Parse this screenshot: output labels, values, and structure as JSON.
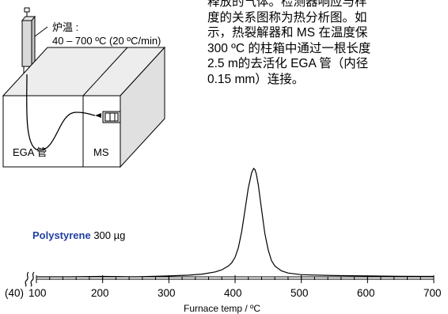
{
  "description_lines": [
    "释放的气体。检测器响应与样",
    "度的关系图称为热分析图。如",
    "示，热裂解器和 MS 在温度保",
    "300 ºC 的柱箱中通过一根长度",
    "2.5 m的去活化 EGA 管（内径",
    "0.15 mm）连接。"
  ],
  "diagram": {
    "furnace_label": "炉温 :",
    "furnace_range": "40 – 700 ºC (20 ºC/min)",
    "ega_label": "EGA 管",
    "ms_label": "MS"
  },
  "chart_data": {
    "type": "line",
    "xlabel": "Furnace temp / ºC",
    "ylabel": "",
    "xlim": [
      100,
      700
    ],
    "ylim": [
      0,
      1
    ],
    "axis_break": true,
    "break_label": "(40)",
    "tick_labels": [
      "100",
      "200",
      "300",
      "400",
      "500",
      "600",
      "700"
    ],
    "ticks": [
      100,
      200,
      300,
      400,
      500,
      600,
      700
    ],
    "annotation": {
      "name": "Polystyrene",
      "amount": "300 µg"
    },
    "series": [
      {
        "color": "#000000",
        "x": [
          100,
          150,
          200,
          250,
          300,
          330,
          350,
          370,
          380,
          390,
          395,
          400,
          405,
          410,
          415,
          420,
          425,
          428,
          430,
          432,
          435,
          440,
          445,
          450,
          455,
          460,
          470,
          480,
          500,
          550,
          600,
          650,
          700
        ],
        "y": [
          0.0,
          0.0,
          0.004,
          0.0,
          0.008,
          0.015,
          0.025,
          0.045,
          0.065,
          0.1,
          0.13,
          0.18,
          0.27,
          0.42,
          0.62,
          0.82,
          0.96,
          1.0,
          0.99,
          0.95,
          0.85,
          0.62,
          0.4,
          0.25,
          0.15,
          0.1,
          0.055,
          0.035,
          0.02,
          0.012,
          0.008,
          0.005,
          0.004
        ]
      }
    ]
  }
}
